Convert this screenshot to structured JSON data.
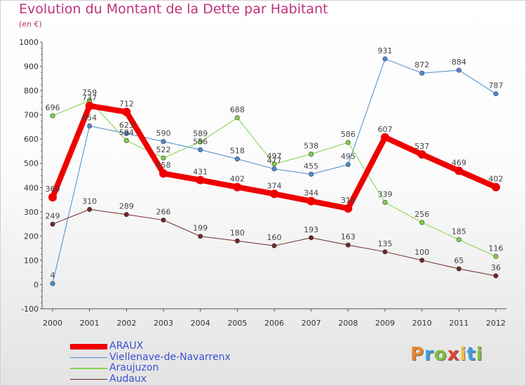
{
  "title": "Evolution du Montant de la Dette par Habitant",
  "unit": "(en €)",
  "logo": {
    "letters": [
      "P",
      "r",
      "o",
      "x",
      "i",
      "t",
      "i"
    ],
    "colors": [
      "#e9862a",
      "#3d9be0",
      "#7fbf3f",
      "#e2412d",
      "#f0c43a",
      "#3d9be0",
      "#7fbf3f"
    ]
  },
  "chart_data": {
    "type": "line",
    "x": [
      2000,
      2001,
      2002,
      2003,
      2004,
      2005,
      2006,
      2007,
      2008,
      2009,
      2010,
      2011,
      2012
    ],
    "ylim": [
      -100,
      1000
    ],
    "yticks": [
      -100,
      0,
      100,
      200,
      300,
      400,
      500,
      600,
      700,
      800,
      900,
      1000
    ],
    "grid": false,
    "legend_position": "bottom-left",
    "series": [
      {
        "name": "Viellenave-de-Navarrenx",
        "color": "#4a8ad0",
        "width": 1,
        "values": [
          4,
          654,
          623,
          590,
          556,
          518,
          477,
          455,
          495,
          931,
          872,
          884,
          787
        ]
      },
      {
        "name": "Araujuzon",
        "color": "#7fd34a",
        "width": 1,
        "values": [
          696,
          759,
          594,
          522,
          589,
          688,
          497,
          538,
          586,
          339,
          256,
          185,
          116
        ]
      },
      {
        "name": "Audaux",
        "color": "#722626",
        "width": 1,
        "values": [
          249,
          310,
          289,
          266,
          199,
          180,
          160,
          193,
          163,
          135,
          100,
          65,
          36
        ]
      },
      {
        "name": "ARAUX",
        "color": "#ee0000",
        "width": 8,
        "values": [
          360,
          737,
          712,
          458,
          431,
          402,
          374,
          344,
          314,
          607,
          537,
          469,
          402
        ]
      }
    ],
    "legend_order": [
      "ARAUX",
      "Viellenave-de-Navarrenx",
      "Araujuzon",
      "Audaux"
    ]
  }
}
